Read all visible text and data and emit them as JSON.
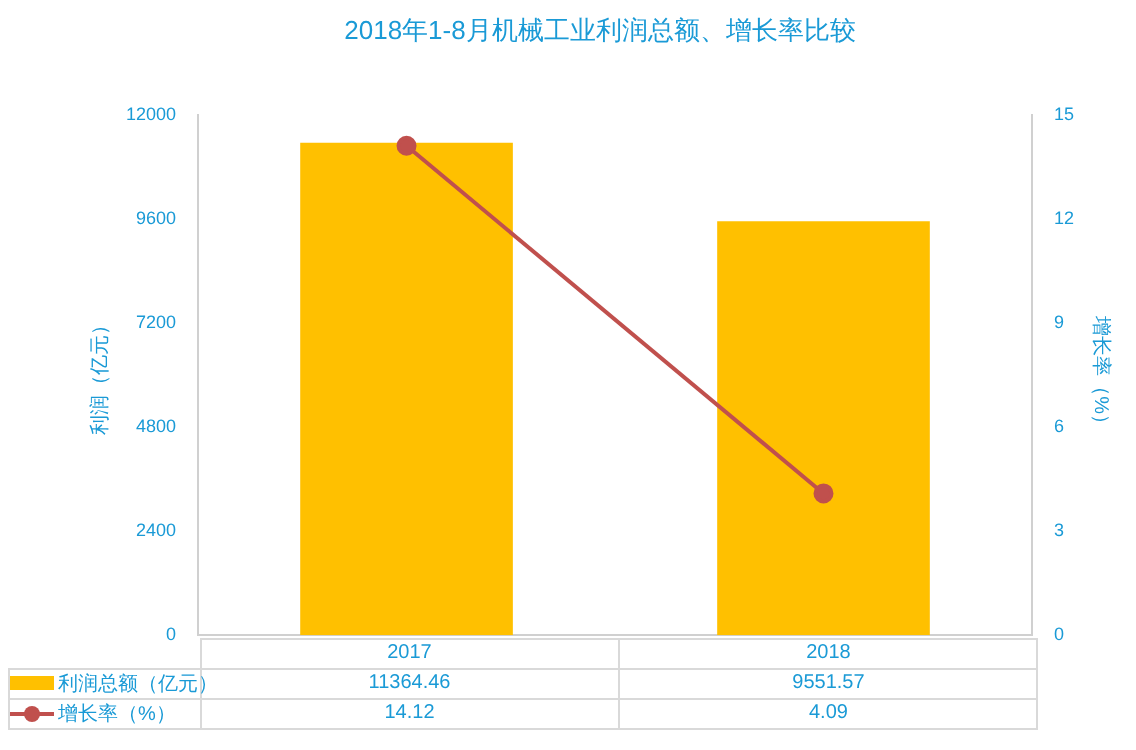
{
  "chart_data": {
    "type": "bar",
    "title": "2018年1-8月机械工业利润总额、增长率比较",
    "categories": [
      "2017",
      "2018"
    ],
    "series": [
      {
        "name": "利润总额（亿元）",
        "color": "#ffc000",
        "values": [
          11364.46,
          9551.57
        ]
      },
      {
        "name": "增长率（%）",
        "type": "line",
        "axis": "y2",
        "color": "#c0504d",
        "values": [
          14.12,
          4.09
        ],
        "marker": "circle"
      }
    ],
    "ylabel": "利润（亿元）",
    "y2label": "增长率（%）",
    "ylim": [
      0,
      12000
    ],
    "yticks": [
      0,
      2400,
      4800,
      7200,
      9600,
      12000
    ],
    "y2lim": [
      0,
      15
    ],
    "y2ticks": [
      0,
      3,
      6,
      9,
      12,
      15
    ],
    "grid": false,
    "legend": "bottom",
    "data_labels": true
  }
}
